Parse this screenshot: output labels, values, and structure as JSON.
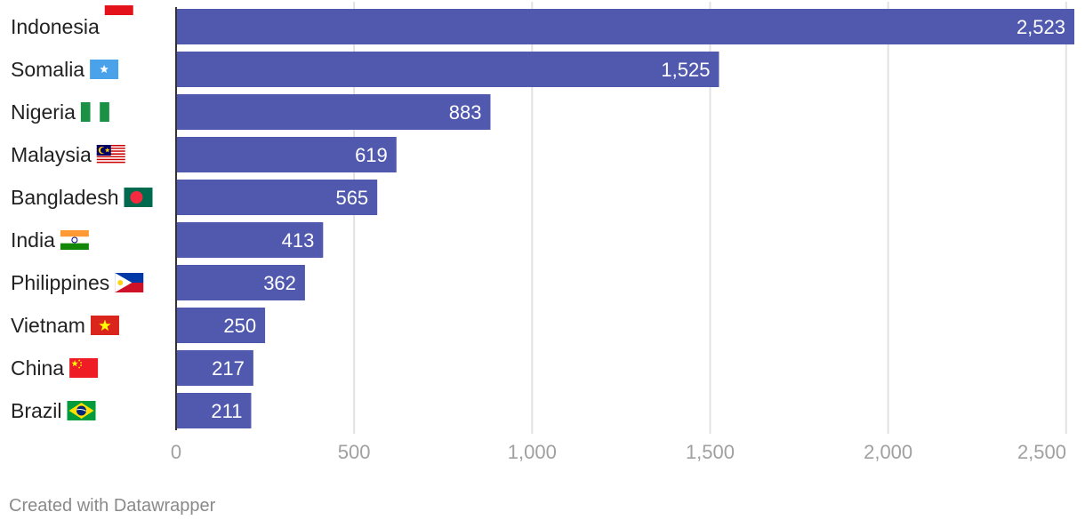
{
  "chart_data": {
    "type": "bar",
    "orientation": "horizontal",
    "categories": [
      "Indonesia",
      "Somalia",
      "Nigeria",
      "Malaysia",
      "Bangladesh",
      "India",
      "Philippines",
      "Vietnam",
      "China",
      "Brazil"
    ],
    "values": [
      2523,
      1525,
      883,
      619,
      565,
      413,
      362,
      250,
      217,
      211
    ],
    "value_labels": [
      "2,523",
      "1,525",
      "883",
      "619",
      "565",
      "413",
      "362",
      "250",
      "217",
      "211"
    ],
    "flag_icons": [
      "indonesia-flag-icon",
      "somalia-flag-icon",
      "nigeria-flag-icon",
      "malaysia-flag-icon",
      "bangladesh-flag-icon",
      "india-flag-icon",
      "philippines-flag-icon",
      "vietnam-flag-icon",
      "china-flag-icon",
      "brazil-flag-icon"
    ],
    "xticks": [
      0,
      500,
      1000,
      1500,
      2000,
      2500
    ],
    "xtick_labels": [
      "0",
      "500",
      "1,000",
      "1,500",
      "2,000",
      "2,500"
    ],
    "xlim": [
      0,
      2523
    ],
    "grid": true,
    "bar_color": "#5059ae",
    "title": "",
    "xlabel": "",
    "ylabel": ""
  },
  "footer": {
    "credit": "Created with Datawrapper"
  }
}
